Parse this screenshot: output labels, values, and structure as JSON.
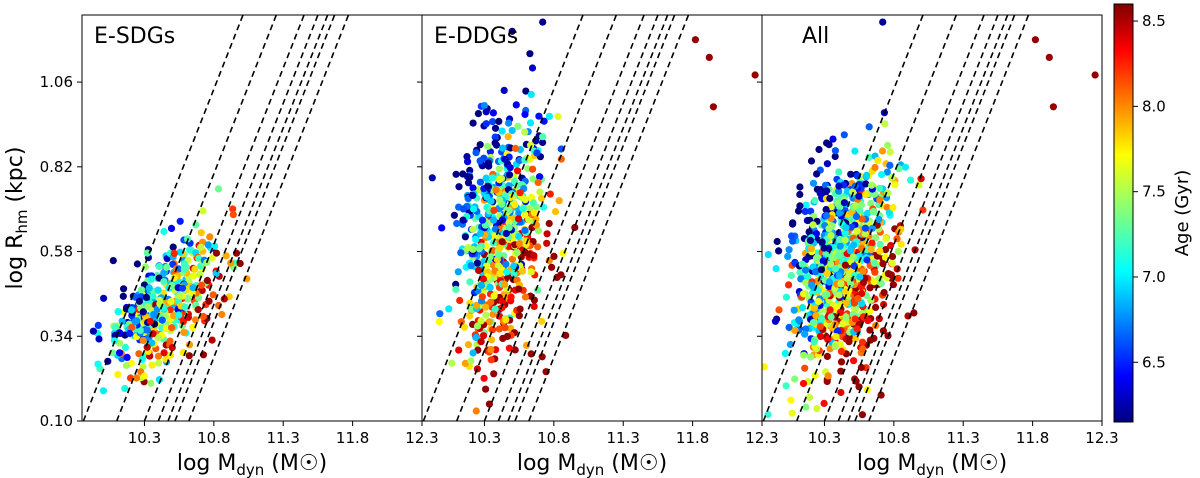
{
  "chart_data": {
    "type": "scatter",
    "xlabel": "log M",
    "xlabel_sub": "dyn",
    "xlabel_unit_open": " (M",
    "xlabel_unit_close": ")",
    "ylabel": "log R",
    "ylabel_sub": "hm",
    "ylabel_unit": " (kpc)",
    "xlim": [
      9.85,
      12.3
    ],
    "ylim": [
      0.1,
      1.25
    ],
    "yticks": [
      0.1,
      0.34,
      0.58,
      0.82,
      1.06
    ],
    "ytick_labels": [
      "0.10",
      "0.34",
      "0.58",
      "0.82",
      "1.06"
    ],
    "panels": [
      {
        "title": "E-SDGs",
        "xticks": [
          10.3,
          10.8,
          11.3,
          11.8,
          12.3
        ],
        "xtick_labels": [
          "10.3",
          "10.8",
          "11.3",
          "11.8",
          "12.3"
        ],
        "cluster": {
          "x_center": 10.45,
          "y_center": 0.43,
          "x_spread": 0.28,
          "y_spread": 0.1,
          "count": 420,
          "seed": 11
        },
        "outliers": []
      },
      {
        "title": "E-DDGs",
        "xticks": [
          10.3,
          10.8,
          11.3,
          11.8,
          12.3
        ],
        "xtick_labels": [
          "10.3",
          "10.8",
          "11.3",
          "11.8",
          "12.3"
        ],
        "cluster": {
          "x_center": 10.42,
          "y_center": 0.62,
          "x_spread": 0.22,
          "y_spread": 0.22,
          "count": 650,
          "seed": 29
        },
        "outliers": [
          {
            "x": 11.82,
            "y": 1.18,
            "age": 8.55
          },
          {
            "x": 11.92,
            "y": 1.13,
            "age": 8.55
          },
          {
            "x": 12.25,
            "y": 1.08,
            "age": 8.55
          },
          {
            "x": 11.95,
            "y": 0.99,
            "age": 8.55
          },
          {
            "x": 10.72,
            "y": 1.23,
            "age": 6.2
          }
        ]
      },
      {
        "title": "All",
        "xticks": [
          10.3,
          10.8,
          11.3,
          11.8,
          12.3
        ],
        "xtick_labels": [
          "10.3",
          "10.8",
          "11.3",
          "11.8",
          "12.3"
        ],
        "cluster": {
          "x_center": 10.43,
          "y_center": 0.54,
          "x_spread": 0.25,
          "y_spread": 0.2,
          "count": 950,
          "seed": 53
        },
        "outliers": [
          {
            "x": 11.82,
            "y": 1.18,
            "age": 8.55
          },
          {
            "x": 11.92,
            "y": 1.13,
            "age": 8.55
          },
          {
            "x": 12.25,
            "y": 1.08,
            "age": 8.55
          },
          {
            "x": 11.95,
            "y": 0.99,
            "age": 8.55
          },
          {
            "x": 10.72,
            "y": 1.23,
            "age": 6.2
          }
        ]
      }
    ],
    "dashed_lines": {
      "slope": 1.0,
      "x_at_bottom": [
        9.86,
        10.1,
        10.3,
        10.4,
        10.47,
        10.52,
        10.62
      ]
    },
    "colorbar": {
      "label": "Age (Gyr)",
      "range": [
        6.15,
        8.6
      ],
      "ticks": [
        6.5,
        7.0,
        7.5,
        8.0,
        8.5
      ],
      "tick_labels": [
        "6.5",
        "7.0",
        "7.5",
        "8.0",
        "8.5"
      ],
      "colormap": "jet"
    }
  }
}
